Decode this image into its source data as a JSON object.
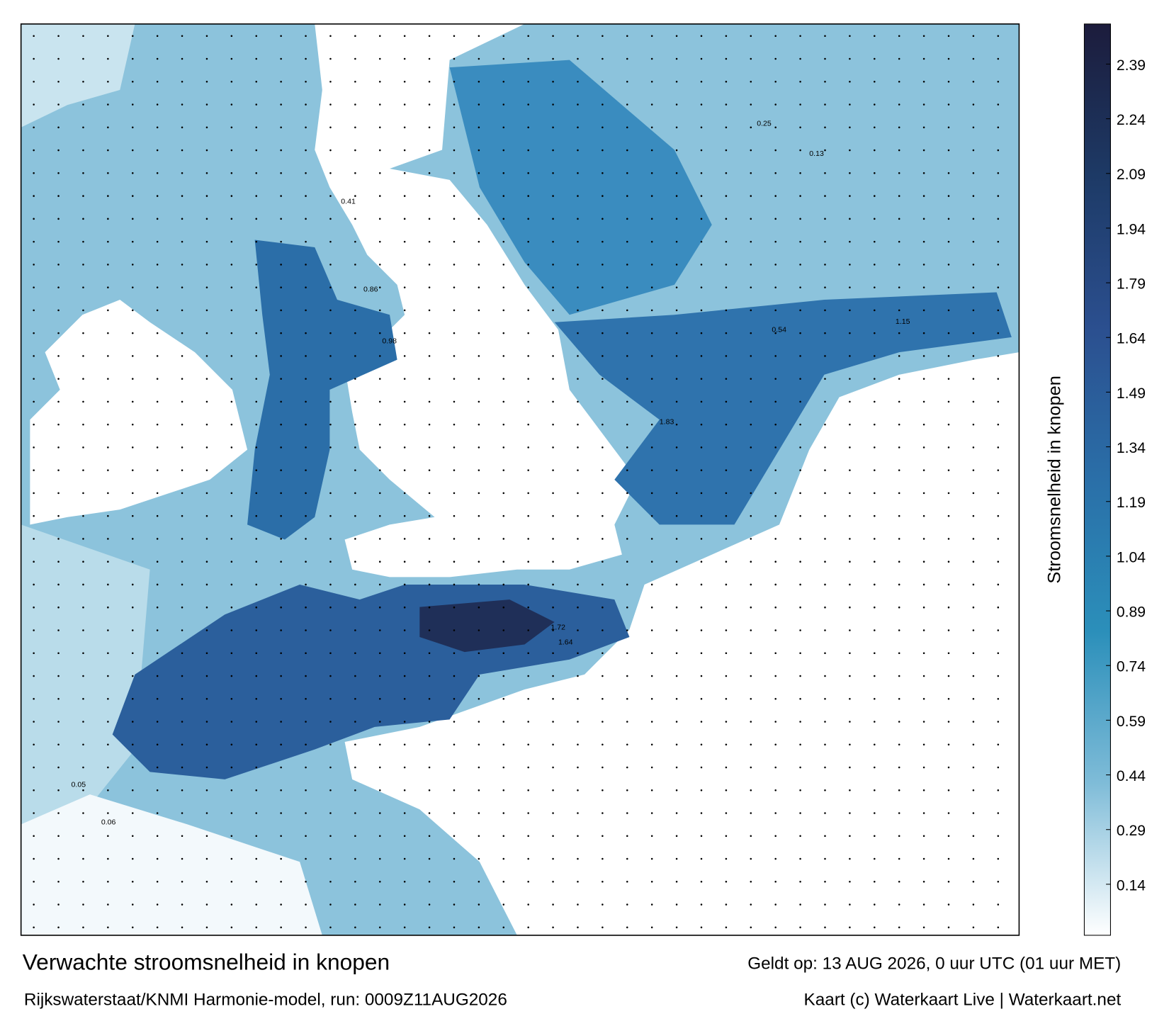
{
  "title": "Verwachte stroomsnelheid in knopen",
  "valid_time": "Geldt op: 13 AUG 2026, 0 uur UTC (01 uur MET)",
  "model_run": "Rijkswaterstaat/KNMI Harmonie-model, run: 0009Z11AUG2026",
  "credit": "Kaart (c) Waterkaart Live | Waterkaart.net",
  "colorbar": {
    "label": "Stroomsnelheid in knopen",
    "lim": [
      0,
      2.5
    ],
    "ticks": [
      0.14,
      0.29,
      0.44,
      0.59,
      0.74,
      0.89,
      1.04,
      1.19,
      1.34,
      1.49,
      1.64,
      1.79,
      1.94,
      2.09,
      2.24,
      2.39
    ],
    "colors": [
      "#ffffff",
      "#7fbcd8",
      "#2b8fba",
      "#2a6fa8",
      "#2b4f8f",
      "#1d3a66",
      "#1c1c3c"
    ]
  },
  "map_labels": [
    "1.72",
    "1.83",
    "1.64",
    "0.98",
    "0.86",
    "1.15",
    "0.54",
    "0.25",
    "0.13",
    "0.41",
    "0.06",
    "0.05"
  ]
}
